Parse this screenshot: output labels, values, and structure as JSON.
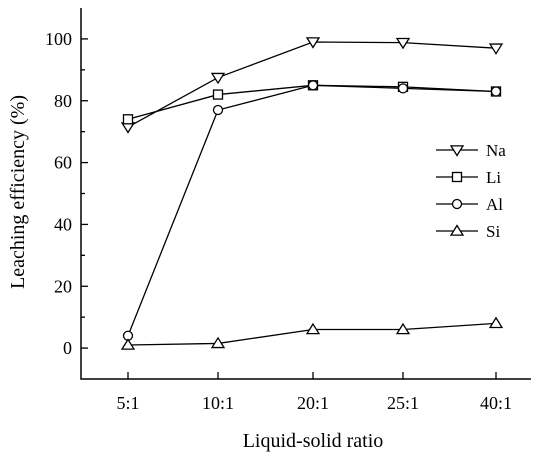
{
  "chart_data": {
    "type": "line",
    "title": "",
    "xlabel": "Liquid-solid ratio",
    "ylabel": "Leaching efficiency (%)",
    "categories": [
      "5:1",
      "10:1",
      "20:1",
      "25:1",
      "40:1"
    ],
    "ylim": [
      -10,
      110
    ],
    "yticks": [
      0,
      20,
      40,
      60,
      80,
      100
    ],
    "grid": false,
    "legend": "center-right",
    "series": [
      {
        "name": "Na",
        "marker": "triangle-down",
        "values": [
          71.5,
          87.5,
          99,
          98.8,
          97
        ]
      },
      {
        "name": "Li",
        "marker": "square",
        "values": [
          74,
          82,
          85,
          84.5,
          83
        ]
      },
      {
        "name": "Al",
        "marker": "circle",
        "values": [
          4,
          77,
          85,
          84,
          83
        ]
      },
      {
        "name": "Si",
        "marker": "triangle-up",
        "values": [
          1,
          1.5,
          6,
          6,
          8
        ]
      }
    ]
  }
}
